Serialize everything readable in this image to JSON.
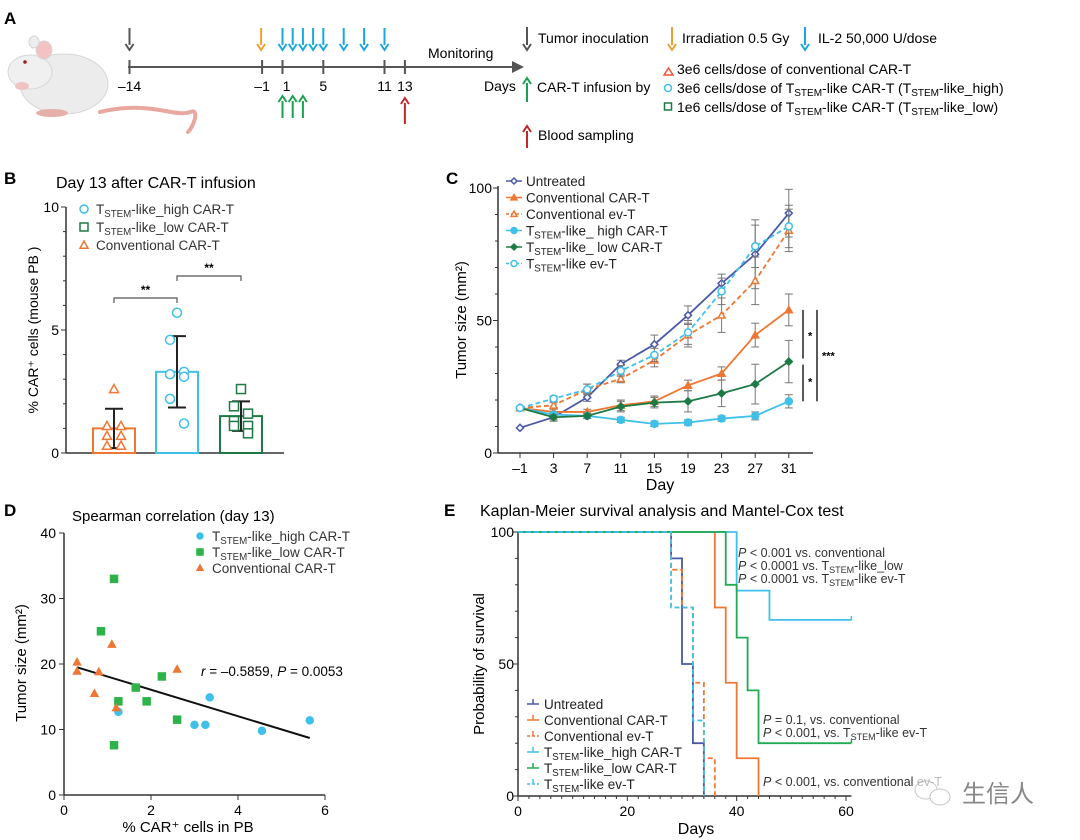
{
  "figure": {
    "panel_labels": [
      "A",
      "B",
      "C",
      "D",
      "E"
    ],
    "watermark": "生信人"
  },
  "colors": {
    "dark_gray": "#555555",
    "orange": "#f0a030",
    "il2_blue": "#1aa7e0",
    "green_arrow": "#1aa050",
    "red_arrow": "#c0282c",
    "untreated": "#4a58a8",
    "conventional": "#ee7733",
    "tstem_high": "#3ec0e8",
    "tstem_low": "#1e7a44",
    "tstem_low_km": "#22aa55",
    "scatter_green": "#2db34a"
  },
  "timeline": {
    "ticks": [
      -14,
      -1,
      1,
      5,
      11,
      13
    ],
    "tick_labels": [
      "–14",
      "–1",
      "1",
      "5",
      "11",
      "13"
    ],
    "monitoring_label": "Monitoring",
    "days_label": "Days",
    "events": {
      "tumor_inoculation_days": [
        -14
      ],
      "irradiation_days": [
        -1
      ],
      "il2_days": [
        1,
        2,
        3,
        4,
        5,
        7,
        9,
        11
      ],
      "cart_infusion_days": [
        1,
        2,
        3
      ],
      "blood_sampling_days": [
        13
      ]
    },
    "legend": {
      "tumor_inoculation": "Tumor inoculation",
      "irradiation": "Irradiation 0.5 Gy",
      "il2": "IL-2 50,000 U/dose",
      "cart_infusion": "CAR-T infusion by",
      "blood_sampling": "Blood sampling",
      "dose_conventional": "3e6 cells/dose of conventional CAR-T",
      "dose_high_pre": "3e6 cells/dose of T",
      "dose_high_mid": "-like CAR-T (T",
      "dose_high_post": "-like_high)",
      "dose_low_pre": "1e6 cells/dose of T",
      "dose_low_mid": "-like CAR-T (T",
      "dose_low_post": "-like_low)",
      "sub_stem": "STEM"
    }
  },
  "chart_data": [
    {
      "panel": "B",
      "type": "bar",
      "title": "Day 13 after CAR-T infusion",
      "ylabel": "% CAR⁺ cells (mouse PB )",
      "ylim": [
        0,
        10
      ],
      "yticks": [
        0,
        5,
        10
      ],
      "categories": [
        "Conventional CAR-T",
        "TSTEM-like_high CAR-T",
        "TSTEM-like_low CAR-T"
      ],
      "legend": [
        {
          "pre": "T",
          "sub": "STEM",
          "post": "-like_high CAR-T",
          "marker": "circle"
        },
        {
          "pre": "T",
          "sub": "STEM",
          "post": "-like_low CAR-T",
          "marker": "square"
        },
        {
          "pre": "",
          "sub": "",
          "post": "Conventional CAR-T",
          "marker": "triangle"
        }
      ],
      "bars": [
        {
          "name": "Conventional CAR-T",
          "mean": 1.0,
          "sd": 0.8,
          "points": [
            2.6,
            1.1,
            1.1,
            0.7,
            0.7,
            0.3,
            0.3
          ],
          "marker": "triangle"
        },
        {
          "name": "TSTEM-like_high CAR-T",
          "mean": 3.3,
          "sd": 1.45,
          "points": [
            5.7,
            4.6,
            3.3,
            3.2,
            3.1,
            2.2,
            1.2
          ],
          "marker": "circle"
        },
        {
          "name": "TSTEM-like_low CAR-T",
          "mean": 1.5,
          "sd": 0.6,
          "points": [
            2.6,
            1.9,
            1.6,
            1.3,
            1.1,
            1.1,
            0.8
          ],
          "marker": "square"
        }
      ],
      "significance": [
        {
          "pair": [
            0,
            1
          ],
          "label": "**"
        },
        {
          "pair": [
            1,
            2
          ],
          "label": "**"
        }
      ]
    },
    {
      "panel": "C",
      "type": "line",
      "xlabel": "Day",
      "ylabel": "Tumor size (mm²)",
      "ylim": [
        0,
        100
      ],
      "yticks": [
        0,
        50,
        100
      ],
      "x": [
        -1,
        3,
        7,
        11,
        15,
        19,
        23,
        27,
        31
      ],
      "x_labels": [
        "–1",
        "3",
        "7",
        "11",
        "15",
        "19",
        "23",
        "27",
        "31"
      ],
      "series": [
        {
          "name": "Untreated",
          "pre": "",
          "sub": "",
          "post": "Untreated",
          "style": "solid",
          "marker": "diamond-open",
          "color_key": "untreated",
          "values": [
            9.5,
            13.5,
            21,
            33.5,
            41,
            52,
            64,
            75,
            90.5
          ],
          "err": [
            0,
            1.5,
            1.5,
            1.5,
            3.5,
            3.5,
            3.5,
            13,
            9
          ]
        },
        {
          "name": "Conventional CAR-T",
          "pre": "",
          "sub": "",
          "post": "Conventional CAR-T",
          "style": "solid",
          "marker": "triangle-filled",
          "color_key": "conventional",
          "values": [
            17,
            15.5,
            15.5,
            18,
            19.5,
            25.5,
            30,
            44.5,
            54
          ],
          "err": [
            0,
            1,
            1,
            2,
            2,
            2,
            2.5,
            4.5,
            6
          ]
        },
        {
          "name": "Conventional ev-T",
          "pre": "",
          "sub": "",
          "post": "Conventional ev-T",
          "style": "dashed",
          "marker": "triangle-open",
          "color_key": "conventional",
          "values": [
            17,
            18,
            24,
            28,
            35,
            44.5,
            52,
            65,
            84
          ],
          "err": [
            0,
            1,
            2,
            1.5,
            2.5,
            4.5,
            6.5,
            9,
            8
          ]
        },
        {
          "name": "TSTEM-like_ high CAR-T",
          "pre": "T",
          "sub": "STEM",
          "post": "-like_ high CAR-T",
          "style": "solid",
          "marker": "circle-filled",
          "color_key": "tstem_high",
          "values": [
            17,
            14.5,
            14,
            12.5,
            11,
            11.5,
            13,
            14,
            19.5
          ],
          "err": [
            0,
            1,
            1,
            1,
            1,
            1,
            1,
            1.5,
            2.5
          ]
        },
        {
          "name": "TSTEM-like_ low CAR-T",
          "pre": "T",
          "sub": "STEM",
          "post": "-like_ low CAR-T",
          "style": "solid",
          "marker": "diamond-filled",
          "color_key": "tstem_low",
          "values": [
            17,
            13.5,
            14,
            17.5,
            19,
            19.5,
            22.5,
            26,
            34.5
          ],
          "err": [
            0,
            1,
            1,
            2,
            2,
            4,
            5,
            7.5,
            8
          ]
        },
        {
          "name": "TSTEM-like ev-T",
          "pre": "T",
          "sub": "STEM",
          "post": "-like ev-T",
          "style": "dashed",
          "marker": "circle-open",
          "color_key": "tstem_high",
          "values": [
            17,
            20.5,
            24,
            31,
            37,
            45.5,
            61,
            78,
            85.5
          ],
          "err": [
            0,
            1,
            2,
            2,
            2.5,
            4.5,
            5,
            8,
            8
          ]
        }
      ],
      "significance": [
        {
          "label": "*",
          "between": [
            "Conventional CAR-T",
            "TSTEM-like_ low CAR-T"
          ]
        },
        {
          "label": "*",
          "between": [
            "TSTEM-like_ low CAR-T",
            "TSTEM-like_ high CAR-T"
          ]
        },
        {
          "label": "***",
          "between": [
            "Conventional CAR-T",
            "TSTEM-like_ high CAR-T"
          ]
        }
      ]
    },
    {
      "panel": "D",
      "type": "scatter",
      "title": "Spearman correlation (day 13)",
      "xlabel": "% CAR⁺ cells in PB",
      "ylabel": "Tumor size (mm²)",
      "xlim": [
        0,
        6
      ],
      "ylim": [
        0,
        40
      ],
      "xticks": [
        0,
        2,
        4,
        6
      ],
      "yticks": [
        0,
        10,
        20,
        30,
        40
      ],
      "annotation": {
        "r_label": "r",
        "r_value": " = –0.5859, ",
        "p_label": "P",
        "p_value": " = 0.0053"
      },
      "fit_line": {
        "x": [
          0.3,
          5.65
        ],
        "y": [
          19.5,
          8.7
        ]
      },
      "series": [
        {
          "name": "TSTEM-like_high CAR-T",
          "pre": "T",
          "sub": "STEM",
          "post": "-like_high CAR-T",
          "marker": "circle",
          "color_key": "tstem_high",
          "points": [
            [
              1.25,
              12.7
            ],
            [
              3.0,
              10.7
            ],
            [
              3.25,
              10.7
            ],
            [
              3.35,
              14.9
            ],
            [
              4.55,
              9.8
            ],
            [
              5.65,
              11.4
            ]
          ]
        },
        {
          "name": "TSTEM-like_low CAR-T",
          "pre": "T",
          "sub": "STEM",
          "post": "-like_low CAR-T",
          "marker": "square",
          "color_key": "scatter_green",
          "points": [
            [
              0.85,
              25
            ],
            [
              1.15,
              33
            ],
            [
              1.25,
              14.3
            ],
            [
              1.15,
              7.6
            ],
            [
              1.65,
              16.4
            ],
            [
              1.9,
              14.3
            ],
            [
              2.25,
              18.1
            ],
            [
              2.6,
              11.5
            ]
          ]
        },
        {
          "name": "Conventional CAR-T",
          "pre": "",
          "sub": "",
          "post": "Conventional CAR-T",
          "marker": "triangle",
          "color_key": "conventional",
          "points": [
            [
              0.3,
              20.3
            ],
            [
              0.3,
              18.9
            ],
            [
              0.7,
              15.5
            ],
            [
              0.8,
              18.8
            ],
            [
              1.1,
              23
            ],
            [
              1.2,
              13.3
            ],
            [
              2.6,
              19.2
            ]
          ]
        }
      ]
    },
    {
      "panel": "E",
      "type": "line",
      "subtype": "kaplan-meier",
      "title": "Kaplan-Meier survival analysis and Mantel-Cox test",
      "xlabel": "Days",
      "ylabel": "Probability of survival",
      "xlim": [
        0,
        61
      ],
      "ylim": [
        0,
        100
      ],
      "xticks": [
        0,
        20,
        40,
        60
      ],
      "yticks": [
        0,
        50,
        100
      ],
      "series": [
        {
          "name": "Untreated",
          "pre": "",
          "sub": "",
          "post": "Untreated",
          "style": "solid",
          "color_key": "untreated",
          "steps": [
            [
              0,
              100
            ],
            [
              28,
              100
            ],
            [
              28,
              90
            ],
            [
              30,
              90
            ],
            [
              30,
              50
            ],
            [
              32,
              50
            ],
            [
              32,
              20
            ],
            [
              34,
              20
            ],
            [
              34,
              0
            ]
          ]
        },
        {
          "name": "Conventional CAR-T",
          "pre": "",
          "sub": "",
          "post": "Conventional CAR-T",
          "style": "solid",
          "color_key": "conventional",
          "steps": [
            [
              0,
              100
            ],
            [
              36,
              100
            ],
            [
              36,
              71.4
            ],
            [
              38,
              71.4
            ],
            [
              38,
              42.9
            ],
            [
              40,
              42.9
            ],
            [
              40,
              14.3
            ],
            [
              44,
              14.3
            ],
            [
              44,
              0
            ]
          ]
        },
        {
          "name": "Conventional ev-T",
          "pre": "",
          "sub": "",
          "post": "Conventional ev-T",
          "style": "dashed",
          "color_key": "conventional",
          "steps": [
            [
              0,
              100
            ],
            [
              28,
              100
            ],
            [
              28,
              85.7
            ],
            [
              30,
              85.7
            ],
            [
              30,
              71.4
            ],
            [
              32,
              71.4
            ],
            [
              32,
              42.9
            ],
            [
              34,
              42.9
            ],
            [
              34,
              14.3
            ],
            [
              36,
              14.3
            ],
            [
              36,
              0
            ]
          ]
        },
        {
          "name": "TSTEM-like_high CAR-T",
          "pre": "T",
          "sub": "STEM",
          "post": "-like_high CAR-T",
          "style": "solid",
          "color_key": "tstem_high",
          "steps": [
            [
              0,
              100
            ],
            [
              40,
              100
            ],
            [
              40,
              77.8
            ],
            [
              46,
              77.8
            ],
            [
              46,
              66.7
            ],
            [
              61,
              66.7
            ]
          ]
        },
        {
          "name": "TSTEM-like_low CAR-T",
          "pre": "T",
          "sub": "STEM",
          "post": "-like_low CAR-T",
          "style": "solid",
          "color_key": "tstem_low_km",
          "steps": [
            [
              0,
              100
            ],
            [
              38,
              100
            ],
            [
              38,
              80
            ],
            [
              40,
              80
            ],
            [
              40,
              60
            ],
            [
              42,
              60
            ],
            [
              42,
              40
            ],
            [
              44,
              40
            ],
            [
              44,
              20
            ],
            [
              61,
              20
            ]
          ]
        },
        {
          "name": "TSTEM-like ev-T",
          "pre": "T",
          "sub": "STEM",
          "post": "-like ev-T",
          "style": "dashed",
          "color_key": "tstem_high",
          "steps": [
            [
              0,
              100
            ],
            [
              28,
              100
            ],
            [
              28,
              71.4
            ],
            [
              32,
              71.4
            ],
            [
              32,
              28.6
            ],
            [
              34,
              28.6
            ],
            [
              34,
              0
            ]
          ]
        }
      ],
      "annotations": [
        {
          "group": "high",
          "lines": [
            {
              "pre": "P",
              "text": " < 0.001 vs. conventional",
              "sub": "",
              "tail": ""
            },
            {
              "pre": "P",
              "text": " < 0.0001 vs. T",
              "sub": "STEM",
              "tail": "-like_low"
            },
            {
              "pre": "P",
              "text": " < 0.0001 vs. T",
              "sub": "STEM",
              "tail": "-like ev-T"
            }
          ]
        },
        {
          "group": "low",
          "lines": [
            {
              "pre": "P",
              "text": " = 0.1, vs. conventional",
              "sub": "",
              "tail": ""
            },
            {
              "pre": "P",
              "text": " < 0.001, vs. T",
              "sub": "STEM",
              "tail": "-like ev-T"
            }
          ]
        },
        {
          "group": "conventional",
          "lines": [
            {
              "pre": "P",
              "text": " < 0.001, vs. conventional",
              "sub": "",
              "tail": " ev-T"
            }
          ]
        }
      ]
    }
  ]
}
